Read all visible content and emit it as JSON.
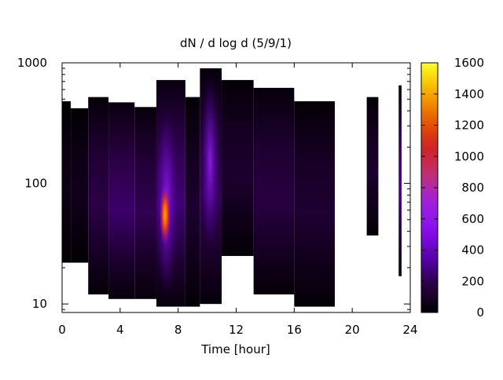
{
  "chart_data": {
    "type": "heatmap",
    "title": "dN / d log d (5/9/1)",
    "xlabel": "Time [hour]",
    "ylabel": "",
    "xlim": [
      0,
      24
    ],
    "ylim": [
      8.5,
      1000
    ],
    "yscale": "log",
    "x_ticks": [
      0,
      4,
      8,
      12,
      16,
      20,
      24
    ],
    "y_ticks": [
      10,
      100,
      1000
    ],
    "y_tick_labels": [
      "10",
      "100",
      "1000"
    ],
    "colorbar": {
      "range": [
        0,
        1600
      ],
      "ticks": [
        0,
        200,
        400,
        600,
        800,
        1000,
        1200,
        1400,
        1600
      ],
      "palette": "black-purple-red-orange-yellow",
      "colors": [
        "#000000",
        "#2a0044",
        "#5a00b0",
        "#8a10f0",
        "#a020e0",
        "#c03070",
        "#d02020",
        "#ea6000",
        "#f6b000",
        "#ffff20"
      ]
    },
    "blocks": [
      {
        "x": [
          0,
          0.6
        ],
        "y": [
          22,
          480
        ],
        "v": 60
      },
      {
        "x": [
          0.6,
          1.8
        ],
        "y": [
          22,
          420
        ],
        "v": 70
      },
      {
        "x": [
          1.8,
          3.2
        ],
        "y": [
          12,
          520
        ],
        "v": 180
      },
      {
        "x": [
          3.2,
          5.0
        ],
        "y": [
          11,
          470
        ],
        "v": 240
      },
      {
        "x": [
          5.0,
          6.5
        ],
        "y": [
          11,
          430
        ],
        "v": 200
      },
      {
        "x": [
          6.5,
          8.5
        ],
        "y": [
          9.5,
          720
        ],
        "v": 260
      },
      {
        "x": [
          8.5,
          9.5
        ],
        "y": [
          9.5,
          520
        ],
        "v": 120
      },
      {
        "x": [
          9.5,
          11.0
        ],
        "y": [
          10,
          900
        ],
        "v": 210
      },
      {
        "x": [
          11.0,
          13.2
        ],
        "y": [
          25,
          720
        ],
        "v": 120
      },
      {
        "x": [
          13.2,
          16.0
        ],
        "y": [
          12,
          620
        ],
        "v": 170
      },
      {
        "x": [
          16.0,
          18.8
        ],
        "y": [
          9.5,
          480
        ],
        "v": 130
      },
      {
        "x": [
          21.0,
          21.8
        ],
        "y": [
          37,
          520
        ],
        "v": 120
      },
      {
        "x": [
          23.2,
          23.4
        ],
        "y": [
          17,
          650
        ],
        "v": 300
      }
    ],
    "hotspot": {
      "x": 7.1,
      "y": 55,
      "v": 1050
    }
  }
}
